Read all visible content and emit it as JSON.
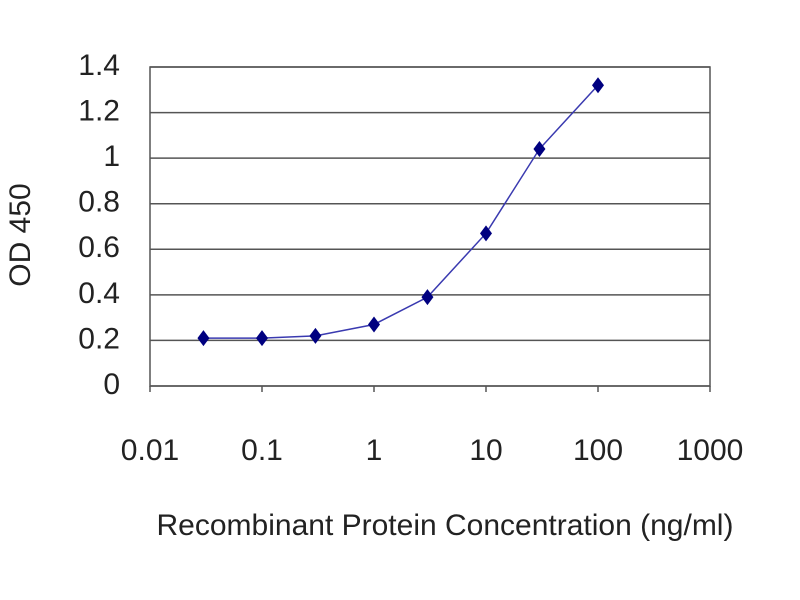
{
  "chart_data": {
    "type": "line",
    "x_label": "Recombinant Protein Concentration (ng/ml)",
    "y_label": "OD 450",
    "x": [
      0.03,
      0.1,
      0.3,
      1,
      3,
      10,
      30,
      100
    ],
    "series": [
      {
        "color": "#000080",
        "values": [
          0.21,
          0.21,
          0.22,
          0.27,
          0.39,
          0.67,
          1.04,
          1.32
        ]
      }
    ],
    "xlim": [
      0.01,
      1000
    ],
    "xticks": [
      0.01,
      0.1,
      1,
      10,
      100,
      1000
    ],
    "x_log": true,
    "ylim": [
      0,
      1.4
    ],
    "yticks": [
      0,
      0.2,
      0.4,
      0.6,
      0.8,
      1,
      1.2,
      1.4
    ],
    "grid": true
  }
}
